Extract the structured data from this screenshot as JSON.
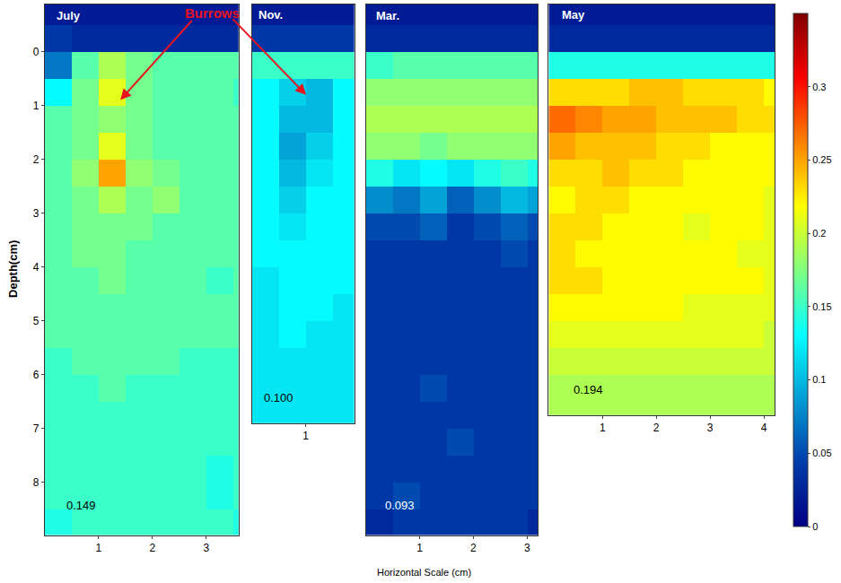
{
  "chart_data": {
    "type": "heatmap",
    "xlabel": "Horizontal Scale (cm)",
    "ylabel": "Depth(cm)",
    "annotation": "Burrows",
    "color_range": [
      0,
      0.35
    ],
    "color_ticks": [
      0,
      0.05,
      0.1,
      0.15,
      0.2,
      0.25,
      0.3
    ],
    "panels": [
      {
        "title": "July",
        "note": "0.149",
        "xlim": [
          0,
          3.6
        ],
        "ylim": [
          -0.88,
          8.98
        ],
        "xticks": [
          1,
          2,
          3
        ],
        "yticks": [
          0,
          1,
          2,
          3,
          4,
          5,
          6,
          7,
          8
        ],
        "x": [
          0.25,
          0.75,
          1.25,
          1.75,
          2.25,
          2.75,
          3.25,
          3.75
        ],
        "depth": [
          -0.75,
          -0.25,
          0.25,
          0.75,
          1.25,
          1.75,
          2.25,
          2.75,
          3.25,
          3.75,
          4.25,
          4.75,
          5.25,
          5.75,
          6.25,
          6.75,
          7.25,
          7.75,
          8.25,
          8.75
        ],
        "z": [
          [
            0.02,
            0.02,
            0.02,
            0.02,
            0.02,
            0.02,
            0.02,
            0.02
          ],
          [
            0.04,
            0.03,
            0.03,
            0.03,
            0.03,
            0.03,
            0.03,
            0.03
          ],
          [
            0.07,
            0.16,
            0.19,
            0.17,
            0.16,
            0.16,
            0.16,
            0.16
          ],
          [
            0.13,
            0.17,
            0.21,
            0.17,
            0.16,
            0.16,
            0.16,
            0.15
          ],
          [
            0.16,
            0.17,
            0.18,
            0.17,
            0.16,
            0.16,
            0.16,
            0.16
          ],
          [
            0.16,
            0.17,
            0.21,
            0.17,
            0.16,
            0.16,
            0.16,
            0.16
          ],
          [
            0.16,
            0.18,
            0.25,
            0.18,
            0.17,
            0.16,
            0.16,
            0.16
          ],
          [
            0.16,
            0.17,
            0.19,
            0.17,
            0.18,
            0.16,
            0.16,
            0.16
          ],
          [
            0.16,
            0.17,
            0.17,
            0.17,
            0.16,
            0.16,
            0.16,
            0.16
          ],
          [
            0.16,
            0.17,
            0.17,
            0.16,
            0.16,
            0.16,
            0.16,
            0.16
          ],
          [
            0.16,
            0.16,
            0.17,
            0.16,
            0.16,
            0.16,
            0.15,
            0.16
          ],
          [
            0.16,
            0.16,
            0.16,
            0.16,
            0.16,
            0.16,
            0.16,
            0.16
          ],
          [
            0.16,
            0.16,
            0.16,
            0.16,
            0.16,
            0.16,
            0.16,
            0.16
          ],
          [
            0.15,
            0.16,
            0.16,
            0.16,
            0.16,
            0.15,
            0.15,
            0.15
          ],
          [
            0.15,
            0.15,
            0.16,
            0.15,
            0.15,
            0.15,
            0.15,
            0.15
          ],
          [
            0.15,
            0.15,
            0.15,
            0.15,
            0.15,
            0.15,
            0.15,
            0.15
          ],
          [
            0.15,
            0.15,
            0.15,
            0.15,
            0.15,
            0.15,
            0.15,
            0.15
          ],
          [
            0.15,
            0.15,
            0.15,
            0.15,
            0.15,
            0.15,
            0.14,
            0.15
          ],
          [
            0.15,
            0.15,
            0.15,
            0.15,
            0.15,
            0.15,
            0.14,
            0.15
          ],
          [
            0.14,
            0.15,
            0.15,
            0.15,
            0.15,
            0.15,
            0.15,
            0.14
          ]
        ]
      },
      {
        "title": "Nov.",
        "note": "0.100",
        "tick_labels": "x",
        "xlim": [
          0,
          1.9
        ],
        "ylim": [
          -0.88,
          6.9
        ],
        "xticks": [
          1
        ],
        "x": [
          0.25,
          0.75,
          1.25,
          1.75
        ],
        "depth": [
          -0.75,
          -0.25,
          0.25,
          0.75,
          1.25,
          1.75,
          2.25,
          2.75,
          3.25,
          3.75,
          4.25,
          4.75,
          5.25,
          5.75,
          6.25,
          6.75
        ],
        "z": [
          [
            0.02,
            0.02,
            0.02,
            0.02
          ],
          [
            0.04,
            0.04,
            0.04,
            0.04
          ],
          [
            0.15,
            0.15,
            0.15,
            0.15
          ],
          [
            0.13,
            0.11,
            0.1,
            0.13
          ],
          [
            0.13,
            0.1,
            0.1,
            0.13
          ],
          [
            0.13,
            0.09,
            0.11,
            0.13
          ],
          [
            0.13,
            0.1,
            0.12,
            0.13
          ],
          [
            0.13,
            0.11,
            0.13,
            0.13
          ],
          [
            0.13,
            0.12,
            0.13,
            0.13
          ],
          [
            0.13,
            0.13,
            0.13,
            0.13
          ],
          [
            0.12,
            0.13,
            0.13,
            0.13
          ],
          [
            0.12,
            0.13,
            0.13,
            0.12
          ],
          [
            0.12,
            0.13,
            0.12,
            0.12
          ],
          [
            0.12,
            0.12,
            0.12,
            0.12
          ],
          [
            0.12,
            0.12,
            0.12,
            0.12
          ],
          [
            0.12,
            0.12,
            0.12,
            0.12
          ]
        ]
      },
      {
        "title": "Mar.",
        "note": "0.093",
        "tick_labels": "x",
        "xlim": [
          0,
          3.2
        ],
        "ylim": [
          -0.88,
          8.98
        ],
        "xticks": [
          1,
          2,
          3
        ],
        "x": [
          0.25,
          0.75,
          1.25,
          1.75,
          2.25,
          2.75,
          3.25
        ],
        "depth": [
          -0.75,
          -0.25,
          0.25,
          0.75,
          1.25,
          1.75,
          2.25,
          2.75,
          3.25,
          3.75,
          4.25,
          4.75,
          5.25,
          5.75,
          6.25,
          6.75,
          7.25,
          7.75,
          8.25,
          8.75
        ],
        "z": [
          [
            0.02,
            0.02,
            0.02,
            0.02,
            0.02,
            0.02,
            0.02
          ],
          [
            0.03,
            0.03,
            0.03,
            0.03,
            0.03,
            0.03,
            0.03
          ],
          [
            0.15,
            0.16,
            0.16,
            0.16,
            0.16,
            0.16,
            0.16
          ],
          [
            0.18,
            0.18,
            0.18,
            0.18,
            0.18,
            0.18,
            0.18
          ],
          [
            0.19,
            0.19,
            0.19,
            0.19,
            0.19,
            0.19,
            0.19
          ],
          [
            0.18,
            0.18,
            0.17,
            0.18,
            0.18,
            0.18,
            0.18
          ],
          [
            0.14,
            0.12,
            0.13,
            0.12,
            0.14,
            0.15,
            0.14
          ],
          [
            0.08,
            0.07,
            0.09,
            0.06,
            0.08,
            0.1,
            0.09
          ],
          [
            0.05,
            0.05,
            0.06,
            0.04,
            0.05,
            0.06,
            0.05
          ],
          [
            0.04,
            0.04,
            0.04,
            0.04,
            0.04,
            0.05,
            0.04
          ],
          [
            0.04,
            0.04,
            0.04,
            0.04,
            0.04,
            0.04,
            0.04
          ],
          [
            0.04,
            0.04,
            0.04,
            0.04,
            0.04,
            0.04,
            0.04
          ],
          [
            0.04,
            0.04,
            0.04,
            0.04,
            0.04,
            0.04,
            0.04
          ],
          [
            0.04,
            0.04,
            0.04,
            0.04,
            0.04,
            0.04,
            0.04
          ],
          [
            0.04,
            0.04,
            0.05,
            0.04,
            0.04,
            0.04,
            0.04
          ],
          [
            0.04,
            0.04,
            0.04,
            0.04,
            0.04,
            0.04,
            0.04
          ],
          [
            0.04,
            0.04,
            0.04,
            0.05,
            0.04,
            0.04,
            0.04
          ],
          [
            0.04,
            0.04,
            0.04,
            0.04,
            0.04,
            0.04,
            0.04
          ],
          [
            0.04,
            0.05,
            0.04,
            0.04,
            0.04,
            0.04,
            0.04
          ],
          [
            0.03,
            0.04,
            0.04,
            0.04,
            0.04,
            0.04,
            0.03
          ]
        ]
      },
      {
        "title": "May",
        "note": "0.194",
        "tick_labels": "x",
        "xlim": [
          0,
          4.2
        ],
        "ylim": [
          -0.88,
          6.75
        ],
        "xticks": [
          1,
          2,
          3,
          4
        ],
        "x": [
          0.25,
          0.75,
          1.25,
          1.75,
          2.25,
          2.75,
          3.25,
          3.75,
          4.25
        ],
        "depth": [
          -0.75,
          -0.25,
          0.25,
          0.75,
          1.25,
          1.75,
          2.25,
          2.75,
          3.25,
          3.75,
          4.25,
          4.75,
          5.25,
          5.75,
          6.25,
          6.75
        ],
        "z": [
          [
            0.02,
            0.02,
            0.02,
            0.02,
            0.02,
            0.02,
            0.02,
            0.02,
            0.02
          ],
          [
            0.03,
            0.03,
            0.03,
            0.03,
            0.03,
            0.03,
            0.03,
            0.03,
            0.03
          ],
          [
            0.14,
            0.14,
            0.14,
            0.14,
            0.14,
            0.14,
            0.14,
            0.14,
            0.14
          ],
          [
            0.23,
            0.23,
            0.23,
            0.24,
            0.24,
            0.23,
            0.23,
            0.23,
            0.22
          ],
          [
            0.27,
            0.26,
            0.25,
            0.25,
            0.24,
            0.24,
            0.24,
            0.23,
            0.23
          ],
          [
            0.25,
            0.24,
            0.24,
            0.24,
            0.23,
            0.23,
            0.22,
            0.22,
            0.22
          ],
          [
            0.23,
            0.23,
            0.24,
            0.23,
            0.23,
            0.22,
            0.22,
            0.22,
            0.22
          ],
          [
            0.22,
            0.23,
            0.23,
            0.22,
            0.22,
            0.22,
            0.22,
            0.22,
            0.21
          ],
          [
            0.23,
            0.23,
            0.22,
            0.22,
            0.22,
            0.21,
            0.22,
            0.22,
            0.21
          ],
          [
            0.23,
            0.22,
            0.22,
            0.22,
            0.22,
            0.22,
            0.22,
            0.21,
            0.21
          ],
          [
            0.23,
            0.23,
            0.22,
            0.22,
            0.22,
            0.22,
            0.22,
            0.22,
            0.21
          ],
          [
            0.22,
            0.22,
            0.22,
            0.22,
            0.22,
            0.21,
            0.21,
            0.21,
            0.21
          ],
          [
            0.21,
            0.21,
            0.21,
            0.21,
            0.21,
            0.21,
            0.21,
            0.21,
            0.2
          ],
          [
            0.2,
            0.2,
            0.2,
            0.2,
            0.2,
            0.2,
            0.2,
            0.2,
            0.2
          ],
          [
            0.19,
            0.19,
            0.19,
            0.19,
            0.19,
            0.19,
            0.19,
            0.19,
            0.19
          ],
          [
            0.19,
            0.19,
            0.19,
            0.19,
            0.19,
            0.19,
            0.19,
            0.19,
            0.19
          ]
        ]
      }
    ]
  }
}
